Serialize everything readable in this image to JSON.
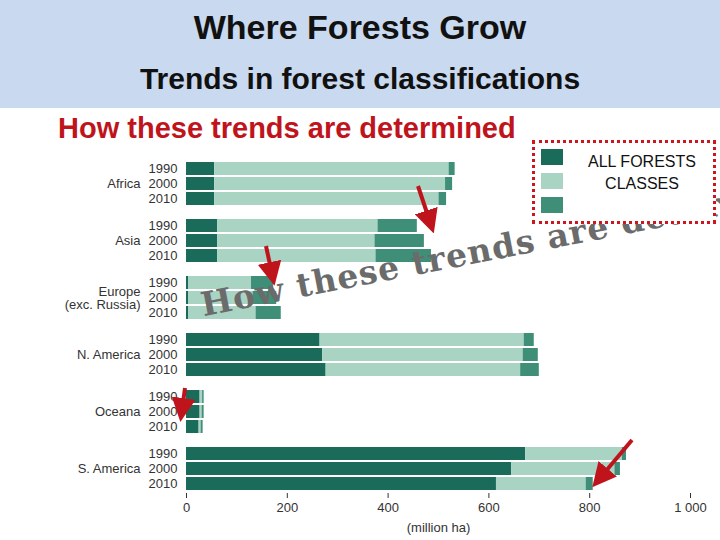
{
  "chart_data": {
    "type": "bar",
    "title": "Where Forests Grow",
    "subtitle": "Trends in forest classifications",
    "annotations": [
      "How these trends are determined",
      "How these trends are determined . . .",
      "ALL FORESTS CLASSES"
    ],
    "orientation": "horizontal",
    "stacked": true,
    "categories": [
      "Africa",
      "Asia",
      "Europe\n(exc. Russia)",
      "N. America",
      "Oceana",
      "S. America"
    ],
    "years": [
      "1990",
      "2000",
      "2010"
    ],
    "series": [
      {
        "color": "#1b6b5b",
        "values": [
          [
            56,
            56,
            56
          ],
          [
            62,
            62,
            62
          ],
          [
            4,
            4,
            4
          ],
          [
            265,
            270,
            277
          ],
          [
            27,
            27,
            25
          ],
          [
            673,
            645,
            615
          ]
        ]
      },
      {
        "color": "#a9d3c3",
        "values": [
          [
            465,
            458,
            445
          ],
          [
            318,
            312,
            314
          ],
          [
            125,
            128,
            134
          ],
          [
            405,
            398,
            386
          ],
          [
            5,
            4,
            4
          ],
          [
            192,
            205,
            178
          ]
        ]
      },
      {
        "color": "#3f8f78",
        "values": [
          [
            12,
            14,
            15
          ],
          [
            78,
            98,
            110
          ],
          [
            44,
            47,
            50
          ],
          [
            20,
            30,
            37
          ],
          [
            3,
            4,
            4
          ],
          [
            8,
            11,
            14
          ]
        ]
      }
    ],
    "x_label": "(million ha)",
    "xlim": [
      0,
      1000
    ],
    "xticks": [
      0,
      200,
      400,
      600,
      800,
      {
        "value": 1000,
        "label": "1 000"
      }
    ],
    "grid": false,
    "legend": "top-right"
  }
}
